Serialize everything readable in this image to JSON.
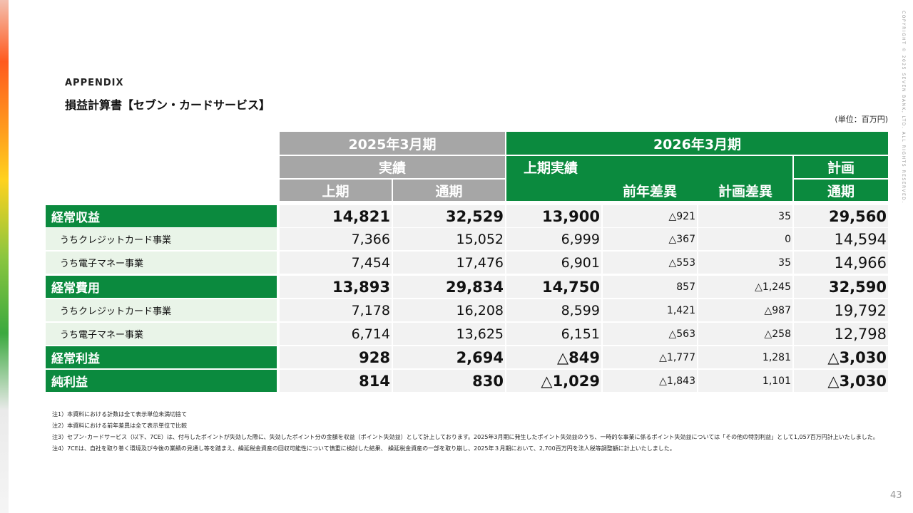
{
  "header": {
    "label": "APPENDIX",
    "title": "損益計算書【セブン・カードサービス】",
    "unit": "(単位：百万円)"
  },
  "copyright": "COPYRIGHT © 2025 SEVEN BANK, LTD. ALL RIGHTS RESERVED.",
  "table": {
    "group_headers": [
      "2025年3月期",
      "2026年3月期"
    ],
    "sub_headers": [
      "実績",
      "上期実績",
      "計画"
    ],
    "columns": [
      "上期",
      "通期",
      "前年差異",
      "計画差異",
      "通期"
    ],
    "rows": [
      [
        "経常収益",
        "14,821",
        "32,529",
        "13,900",
        "△921",
        "35",
        "29,560"
      ],
      [
        "うちクレジットカード事業",
        "7,366",
        "15,052",
        "6,999",
        "△367",
        "0",
        "14,594"
      ],
      [
        "うち電子マネー事業",
        "7,454",
        "17,476",
        "6,901",
        "△553",
        "35",
        "14,966"
      ],
      [
        "経常費用",
        "13,893",
        "29,834",
        "14,750",
        "857",
        "△1,245",
        "32,590"
      ],
      [
        "うちクレジットカード事業",
        "7,178",
        "16,208",
        "8,599",
        "1,421",
        "△987",
        "19,792"
      ],
      [
        "うち電子マネー事業",
        "6,714",
        "13,625",
        "6,151",
        "△563",
        "△258",
        "12,798"
      ],
      [
        "経常利益",
        "928",
        "2,694",
        "△849",
        "△1,777",
        "1,281",
        "△3,030"
      ],
      [
        "純利益",
        "814",
        "830",
        "△1,029",
        "△1,843",
        "1,101",
        "△3,030"
      ]
    ]
  },
  "notes": [
    "注1）本資料における計数は全て表示単位未満切捨て",
    "注2）本資料における前年差異は全て表示単位で比較",
    "注3）セブン･カードサービス（以下、7CE）は、付与したポイントが失効した際に、失効したポイント分の金額を収益（ポイント失効益）として計上しております。2025年3月期に発生したポイント失効益のうち、一時的な事業に係るポイント失効益については「その他の特別利益」として1,057百万円計上いたしました。",
    "注4）7CEは、自社を取り巻く環境及び今後の業績の見通し等を踏まえ、繰延税金資産の回収可能性について慎重に検討した結果、 繰延税金資産の一部を取り崩し、2025年３月期において、2,700百万円を法人税等調整額に計上いたしました。"
  ],
  "page_number": "43"
}
